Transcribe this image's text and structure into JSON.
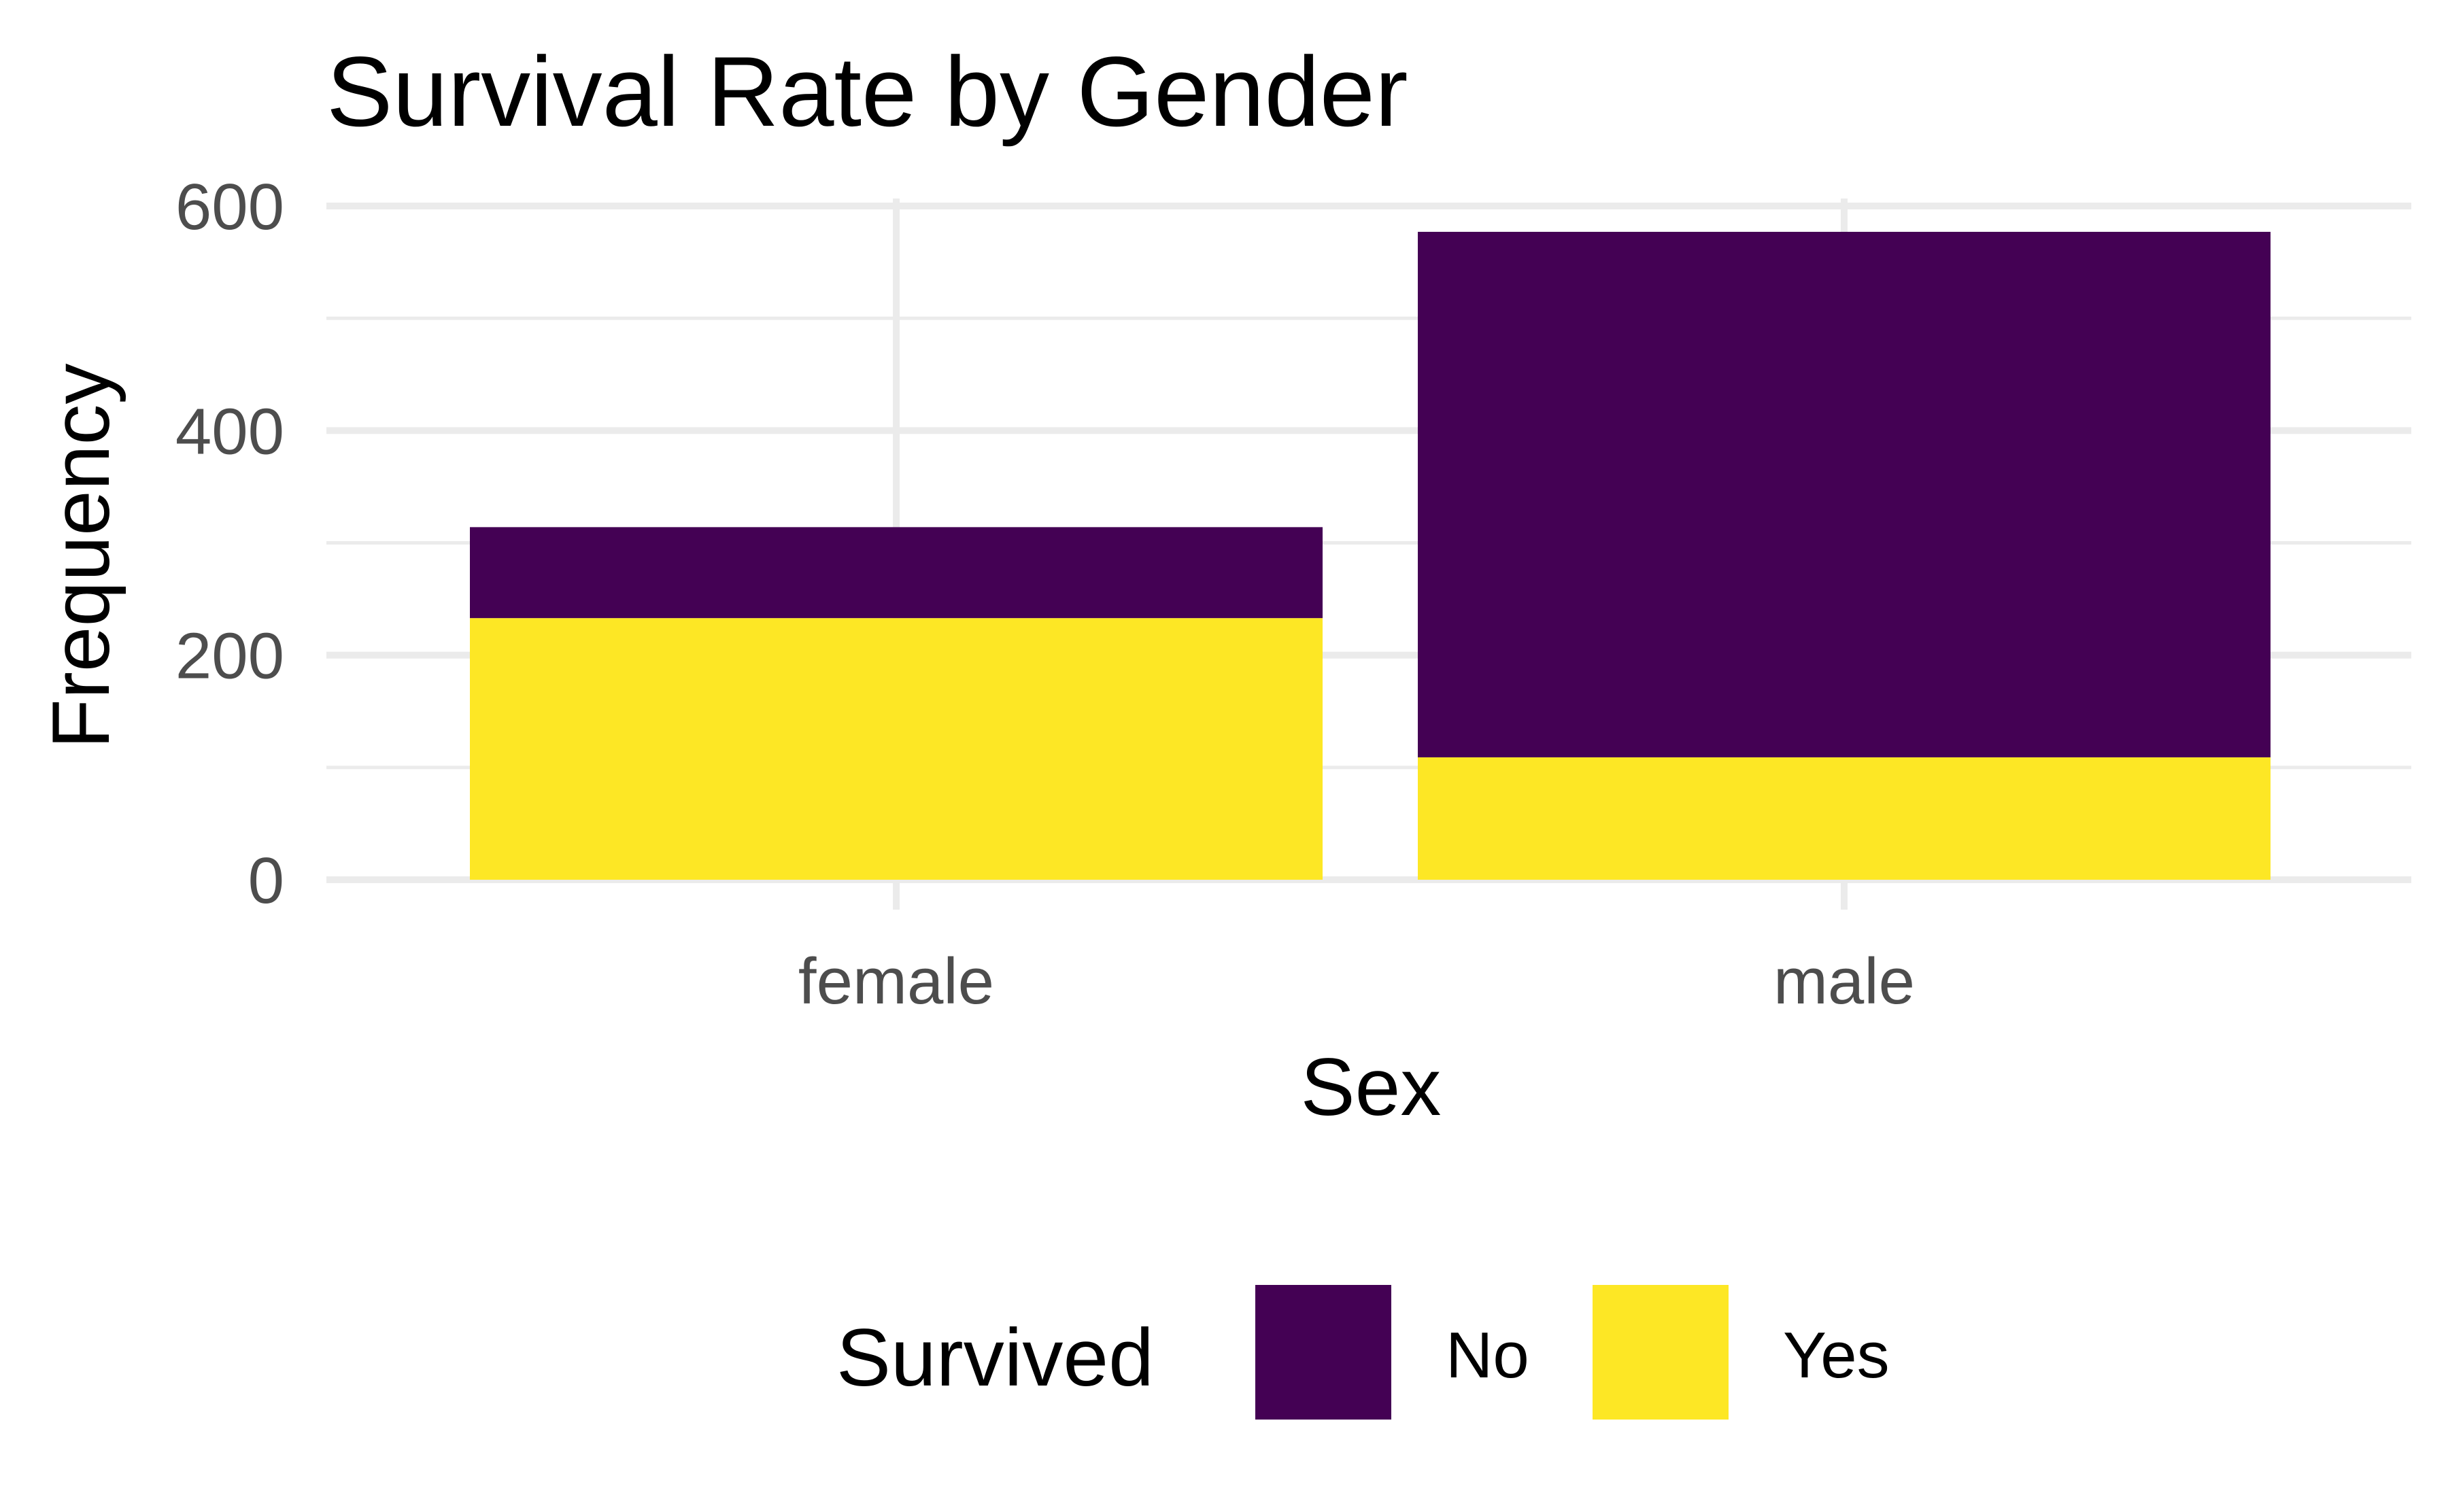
{
  "chart_data": {
    "type": "bar",
    "stacked": true,
    "title": "Survival Rate by Gender",
    "xlabel": "Sex",
    "ylabel": "Frequency",
    "categories": [
      "female",
      "male"
    ],
    "series": [
      {
        "name": "No",
        "values": [
          81,
          468
        ],
        "color": "#440154"
      },
      {
        "name": "Yes",
        "values": [
          233,
          109
        ],
        "color": "#FDE725"
      }
    ],
    "ylim": [
      0,
      600
    ],
    "yticks": [
      0,
      200,
      400,
      600
    ],
    "grid": true,
    "legend": {
      "title": "Survived",
      "position": "bottom",
      "entries": [
        "No",
        "Yes"
      ]
    }
  }
}
